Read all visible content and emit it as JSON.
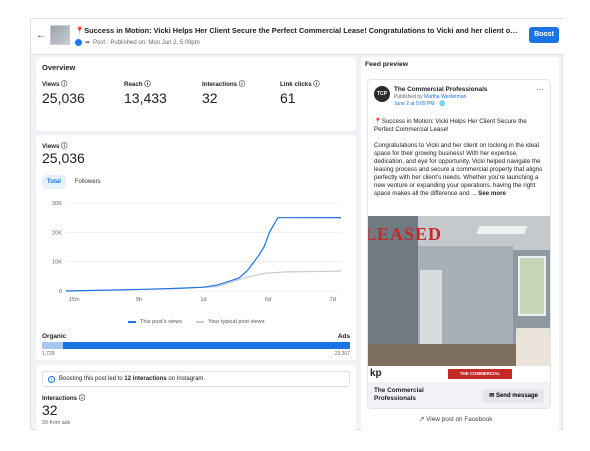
{
  "header": {
    "back_icon": "arrow-left-icon",
    "title": "📍Success in Motion: Vicki Helps Her Client Secure the Perfect Commercial Lease! Congratulations to Vicki and her client on locking in the ideal space...",
    "subtitle": "Post · Published on: Mon Jun 2, 5:09pm",
    "boost_label": "Boost"
  },
  "overview": {
    "heading": "Overview",
    "stats": [
      {
        "label": "Views",
        "value": "25,036"
      },
      {
        "label": "Reach",
        "value": "13,433"
      },
      {
        "label": "Interactions",
        "value": "32"
      },
      {
        "label": "Link clicks",
        "value": "61"
      }
    ]
  },
  "views_chart": {
    "label": "Views",
    "value": "25,036",
    "tabs": [
      {
        "label": "Total"
      },
      {
        "label": "Followers"
      }
    ],
    "legend": [
      "This post's views",
      "Your typical post views"
    ],
    "organic_label": "Organic",
    "ads_label": "Ads",
    "organic_value": "1,729",
    "ads_value": "23,307",
    "organic_share": 0.069
  },
  "chart_data": {
    "type": "line",
    "x": [
      "15m",
      "9h",
      "1d",
      "6d",
      "7d"
    ],
    "yticks": [
      "0",
      "10K",
      "20K",
      "30K"
    ],
    "ylim": [
      0,
      30000
    ],
    "series": [
      {
        "name": "This post's views",
        "color": "#1b74e4",
        "points": [
          [
            0,
            0
          ],
          [
            0.1,
            200
          ],
          [
            0.2,
            400
          ],
          [
            0.3,
            600
          ],
          [
            0.4,
            900
          ],
          [
            0.5,
            1300
          ],
          [
            0.55,
            2000
          ],
          [
            0.6,
            3500
          ],
          [
            0.63,
            4500
          ],
          [
            0.66,
            7000
          ],
          [
            0.68,
            9500
          ],
          [
            0.7,
            12000
          ],
          [
            0.72,
            15000
          ],
          [
            0.74,
            20000
          ],
          [
            0.77,
            25000
          ],
          [
            0.85,
            25000
          ],
          [
            1.0,
            25036
          ]
        ]
      },
      {
        "name": "Your typical post views",
        "color": "#c9ccd1",
        "points": [
          [
            0,
            0
          ],
          [
            0.2,
            300
          ],
          [
            0.4,
            800
          ],
          [
            0.55,
            1500
          ],
          [
            0.6,
            3000
          ],
          [
            0.65,
            4500
          ],
          [
            0.72,
            6000
          ],
          [
            0.8,
            6500
          ],
          [
            1.0,
            6800
          ]
        ]
      }
    ]
  },
  "boost": {
    "note_prefix": "Boosting this post led to ",
    "note_count": "12 interactions",
    "note_suffix": " on Instagram.",
    "interactions_label": "Interactions",
    "interactions_value": "32",
    "from_ads": "20 from ads"
  },
  "feed_preview": {
    "heading": "Feed preview",
    "page_name": "The Commercial Professionals",
    "published_by_prefix": "Published by ",
    "published_by": "Martha Westerman",
    "date": "June 2 at 5:09 PM · 🌐",
    "title": "📍Success in Motion: Vicki Helps Her Client Secure the Perfect Commercial Lease!",
    "body": "Congratulations to Vicki and her client on locking in the ideal space for their growing business! With her expertise, dedication, and eye for opportunity, Vicki helped navigate the leasing process and secure a commercial property that aligns perfectly with her client's needs. Whether you're launching a new venture or expanding your operations, having the right space makes all the difference and ...",
    "see_more": "See more",
    "photo_banner": "LEASED",
    "brand_logo": "kp",
    "brand_tag": "THE COMMERCIAL PROFESSIONALS",
    "cta_name": "The Commercial Professionals",
    "send_message": "Send message",
    "view_on_fb": "View post on Facebook"
  }
}
